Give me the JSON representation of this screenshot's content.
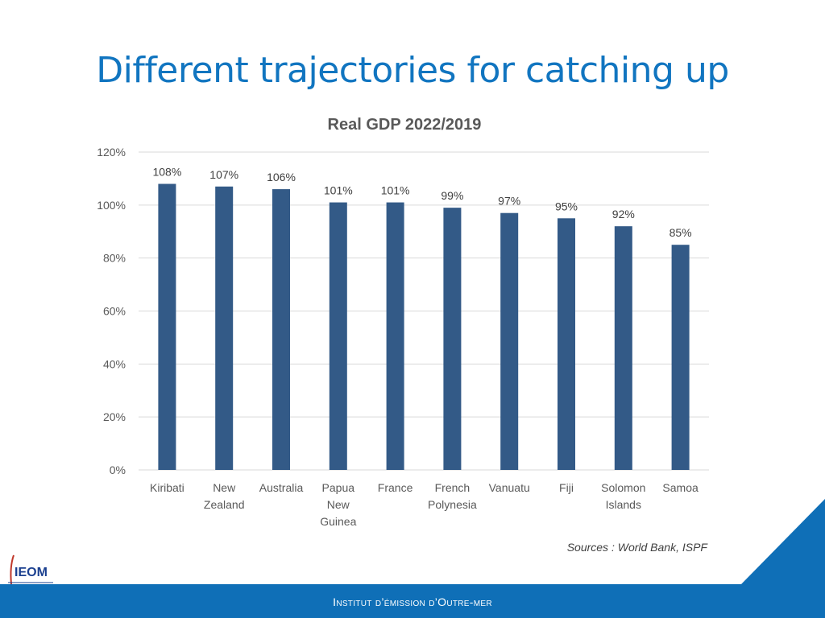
{
  "slide": {
    "title": "Different trajectories for catching up",
    "sources": "Sources : World Bank, ISPF",
    "footer": "Institut d’émission d’Outre-mer",
    "logo": "IEOM"
  },
  "colors": {
    "title": "#1175c0",
    "bar": "#335a87",
    "band": "#0f6fb7"
  },
  "chart_data": {
    "type": "bar",
    "title": "Real GDP 2022/2019",
    "categories": [
      "Kiribati",
      "New Zealand",
      "Australia",
      "Papua New Guinea",
      "France",
      "French Polynesia",
      "Vanuatu",
      "Fiji",
      "Solomon Islands",
      "Samoa"
    ],
    "category_lines": [
      [
        "Kiribati"
      ],
      [
        "New",
        "Zealand"
      ],
      [
        "Australia"
      ],
      [
        "Papua",
        "New",
        "Guinea"
      ],
      [
        "France"
      ],
      [
        "French",
        "Polynesia"
      ],
      [
        "Vanuatu"
      ],
      [
        "Fiji"
      ],
      [
        "Solomon",
        "Islands"
      ],
      [
        "Samoa"
      ]
    ],
    "values": [
      108,
      107,
      106,
      101,
      101,
      99,
      97,
      95,
      92,
      85
    ],
    "data_labels": [
      "108%",
      "107%",
      "106%",
      "101%",
      "101%",
      "99%",
      "97%",
      "95%",
      "92%",
      "85%"
    ],
    "yticks": [
      0,
      20,
      40,
      60,
      80,
      100,
      120
    ],
    "ytick_labels": [
      "0%",
      "20%",
      "40%",
      "60%",
      "80%",
      "100%",
      "120%"
    ],
    "ylim": [
      0,
      120
    ],
    "xlabel": "",
    "ylabel": "",
    "grid": true,
    "legend": "none"
  }
}
